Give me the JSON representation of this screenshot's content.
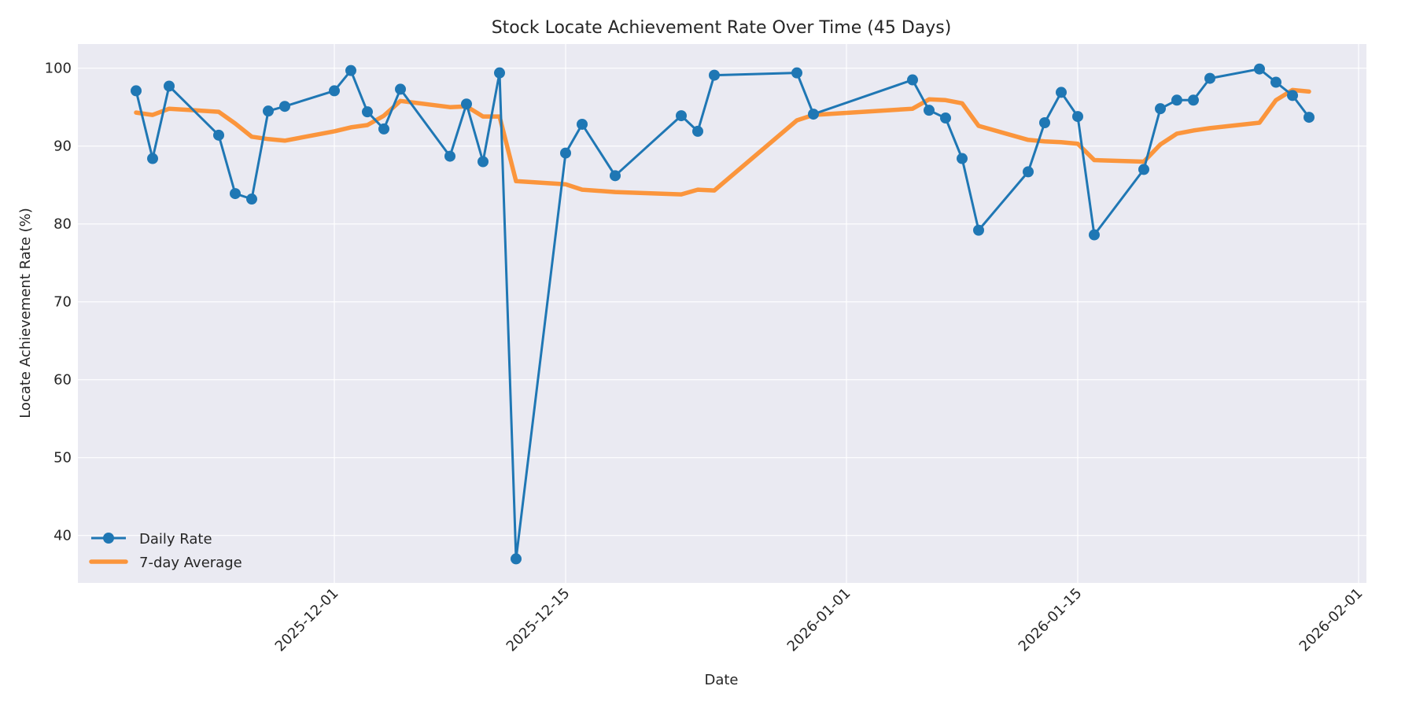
{
  "chart_data": {
    "type": "line",
    "title": "Stock Locate Achievement Rate Over Time (45 Days)",
    "xlabel": "Date",
    "ylabel": "Locate Achievement Rate (%)",
    "ylim": [
      33.9,
      103.1
    ],
    "xlim": [
      "2025-11-15",
      "2026-02-01"
    ],
    "yticks": [
      40,
      50,
      60,
      70,
      80,
      90,
      100
    ],
    "xticks": [
      "2025-12-01",
      "2025-12-15",
      "2026-01-01",
      "2026-01-15",
      "2026-02-01"
    ],
    "xtick_rotation": 45,
    "grid": true,
    "legend_position": "lower left",
    "background_color": "#eaeaf2",
    "x": [
      "2025-11-19",
      "2025-11-20",
      "2025-11-21",
      "2025-11-24",
      "2025-11-25",
      "2025-11-26",
      "2025-11-27",
      "2025-11-28",
      "2025-12-01",
      "2025-12-02",
      "2025-12-03",
      "2025-12-04",
      "2025-12-05",
      "2025-12-08",
      "2025-12-09",
      "2025-12-10",
      "2025-12-11",
      "2025-12-12",
      "2025-12-15",
      "2025-12-16",
      "2025-12-18",
      "2025-12-22",
      "2025-12-23",
      "2025-12-24",
      "2025-12-29",
      "2025-12-30",
      "2026-01-05",
      "2026-01-06",
      "2026-01-07",
      "2026-01-08",
      "2026-01-09",
      "2026-01-12",
      "2026-01-13",
      "2026-01-14",
      "2026-01-15",
      "2026-01-16",
      "2026-01-19",
      "2026-01-20",
      "2026-01-21",
      "2026-01-22",
      "2026-01-23",
      "2026-01-26",
      "2026-01-27",
      "2026-01-28",
      "2026-01-29"
    ],
    "series": [
      {
        "name": "Daily Rate",
        "color": "#1f77b4",
        "marker": "circle",
        "values": [
          97.1,
          88.4,
          97.7,
          91.4,
          83.9,
          83.2,
          94.5,
          95.1,
          97.1,
          99.7,
          94.4,
          92.2,
          97.3,
          88.7,
          95.4,
          88.0,
          99.4,
          37.0,
          89.1,
          92.8,
          86.2,
          93.9,
          91.9,
          99.1,
          99.4,
          94.1,
          98.5,
          94.6,
          93.6,
          88.4,
          79.2,
          86.7,
          93.0,
          96.9,
          93.8,
          78.6,
          87.0,
          94.8,
          95.9,
          95.9,
          98.7,
          99.9,
          98.2,
          96.5,
          93.7
        ]
      },
      {
        "name": "7-day Average",
        "color": "#ff7f0e",
        "marker": "none",
        "values": [
          94.3,
          94.0,
          94.8,
          94.4,
          92.9,
          91.2,
          90.9,
          90.7,
          91.9,
          92.4,
          92.7,
          93.9,
          95.8,
          95.0,
          95.1,
          93.8,
          93.8,
          85.5,
          85.1,
          84.4,
          84.1,
          83.8,
          84.4,
          84.3,
          93.3,
          94.0,
          94.8,
          96.0,
          95.9,
          95.5,
          92.6,
          90.8,
          90.6,
          90.5,
          90.3,
          88.2,
          88.0,
          90.2,
          91.6,
          92.0,
          92.3,
          93.0,
          95.9,
          97.2,
          97.0
        ]
      }
    ]
  },
  "legend": {
    "items": [
      {
        "label": "Daily Rate"
      },
      {
        "label": "7-day Average"
      }
    ]
  }
}
